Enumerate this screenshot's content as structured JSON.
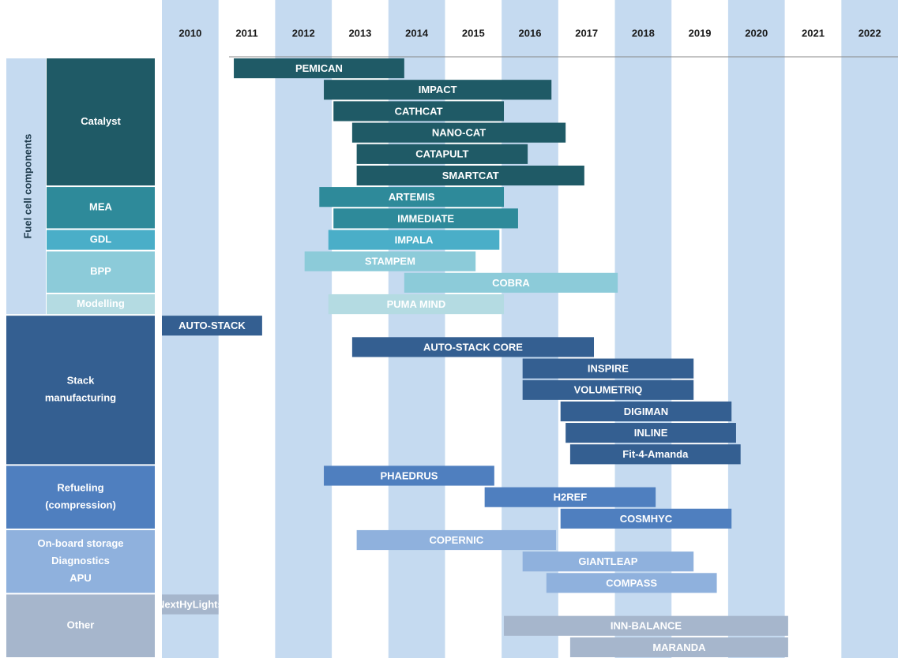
{
  "chart_data": {
    "type": "gantt",
    "xlim": [
      2010,
      2023
    ],
    "xticks": [
      2010,
      2011,
      2012,
      2013,
      2014,
      2015,
      2016,
      2017,
      2018,
      2019,
      2020,
      2021,
      2022
    ],
    "sections": [
      {
        "name": "Fuel cell components",
        "groups": [
          {
            "lines": [
              "Catalyst"
            ],
            "color": "#1f5a66",
            "bars": [
              {
                "name": "PEMICAN",
                "start": 2011.27,
                "end": 2014.28
              },
              {
                "name": "IMPACT",
                "start": 2012.86,
                "end": 2016.88
              },
              {
                "name": "CATHCAT",
                "start": 2013.03,
                "end": 2016.04
              },
              {
                "name": "NANO-CAT",
                "start": 2013.36,
                "end": 2017.13
              },
              {
                "name": "CATAPULT",
                "start": 2013.44,
                "end": 2016.46
              },
              {
                "name": "SMARTCAT",
                "start": 2013.44,
                "end": 2017.46
              }
            ]
          },
          {
            "lines": [
              "MEA"
            ],
            "color": "#2e8a9a",
            "bars": [
              {
                "name": "ARTEMIS",
                "start": 2012.78,
                "end": 2016.04
              },
              {
                "name": "IMMEDIATE",
                "start": 2013.03,
                "end": 2016.29
              }
            ]
          },
          {
            "lines": [
              "GDL"
            ],
            "color": "#4aaec8",
            "bars": [
              {
                "name": "IMPALA",
                "start": 2012.94,
                "end": 2015.96
              }
            ]
          },
          {
            "lines": [
              "BPP"
            ],
            "color": "#8ccbd9",
            "bars": [
              {
                "name": "STAMPEM",
                "start": 2012.52,
                "end": 2015.54
              },
              {
                "name": "COBRA",
                "start": 2014.28,
                "end": 2018.05
              }
            ]
          },
          {
            "lines": [
              "Modelling"
            ],
            "color": "#b4dbe2",
            "bars": [
              {
                "name": "PUMA MIND",
                "start": 2012.94,
                "end": 2016.04
              }
            ]
          }
        ]
      },
      {
        "groups": [
          {
            "lines": [
              "Stack",
              "manufacturing"
            ],
            "color": "#345f91",
            "bars": [
              {
                "name": "AUTO-STACK",
                "start": 2010.0,
                "end": 2011.77
              },
              {
                "name": "AUTO-STACK CORE",
                "start": 2013.36,
                "end": 2017.63
              },
              {
                "name": "INSPIRE",
                "start": 2016.37,
                "end": 2019.39
              },
              {
                "name": "VOLUMETRIQ",
                "start": 2016.37,
                "end": 2019.39
              },
              {
                "name": "DIGIMAN",
                "start": 2017.04,
                "end": 2020.06
              },
              {
                "name": "INLINE",
                "start": 2017.13,
                "end": 2020.14
              },
              {
                "name": "Fit-4-Amanda",
                "start": 2017.21,
                "end": 2020.22
              }
            ]
          },
          {
            "lines": [
              "Refueling",
              "(compression)"
            ],
            "color": "#4f7fbf",
            "bars": [
              {
                "name": "PHAEDRUS",
                "start": 2012.86,
                "end": 2015.87
              },
              {
                "name": "H2REF",
                "start": 2015.7,
                "end": 2018.72
              },
              {
                "name": "COSMHYC",
                "start": 2017.04,
                "end": 2020.06
              }
            ]
          },
          {
            "lines": [
              "On-board storage",
              "Diagnostics",
              "APU"
            ],
            "color": "#8fb1dd",
            "bars": [
              {
                "name": "COPERNIC",
                "start": 2013.44,
                "end": 2016.96
              },
              {
                "name": "GIANTLEAP",
                "start": 2016.37,
                "end": 2019.39
              },
              {
                "name": "COMPASS",
                "start": 2016.79,
                "end": 2019.8
              }
            ]
          },
          {
            "lines": [
              "Other"
            ],
            "color": "#a6b6cc",
            "bars": [
              {
                "name": "NextHyLights",
                "start": 2010.0,
                "end": 2011.0
              },
              {
                "name": "INN-BALANCE",
                "start": 2016.04,
                "end": 2021.06
              },
              {
                "name": "MARANDA",
                "start": 2017.21,
                "end": 2021.06
              }
            ]
          }
        ]
      }
    ]
  }
}
